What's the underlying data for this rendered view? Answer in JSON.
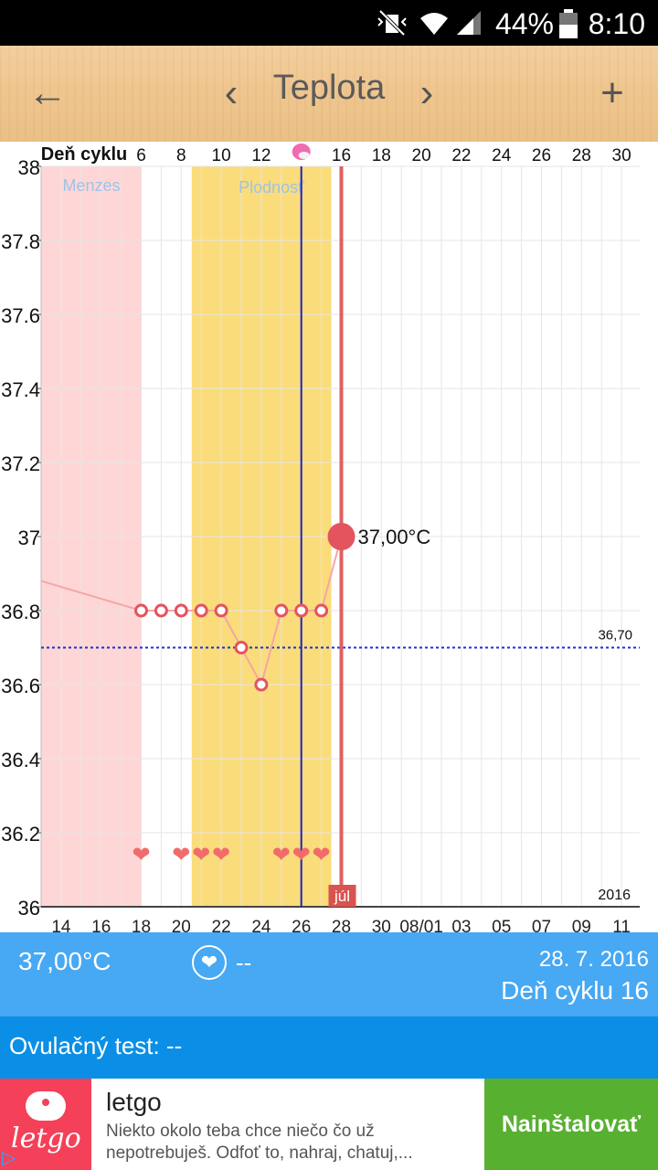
{
  "status_bar": {
    "battery": "44%",
    "time": "8:10"
  },
  "toolbar": {
    "back_label": "←",
    "prev_label": "‹",
    "title": "Teplota",
    "next_label": "›",
    "add_label": "+"
  },
  "chart_data": {
    "type": "line",
    "top_axis_title": "Deň cyklu",
    "top_ticks": [
      "6",
      "8",
      "10",
      "12",
      "",
      "16",
      "18",
      "20",
      "22",
      "24",
      "26",
      "28",
      "30"
    ],
    "bottom_ticks": [
      "14",
      "16",
      "18",
      "20",
      "22",
      "24",
      "26",
      "28",
      "30",
      "08/01",
      "03",
      "05",
      "07",
      "09",
      "11"
    ],
    "y_ticks": [
      "38",
      "37.8",
      "37.6",
      "37.4",
      "37.2",
      "37",
      "36.8",
      "36.6",
      "36.4",
      "36.2",
      "36"
    ],
    "ylim": [
      36,
      38
    ],
    "year_label": "2016",
    "month_label": "júl",
    "phases": [
      {
        "label": "Menzes",
        "color": "#ffd6d6"
      },
      {
        "label": "Plodnosť",
        "color": "#fadc7b"
      }
    ],
    "coverline": {
      "value": 36.7,
      "label": "36,70",
      "color": "#1f2fc9"
    },
    "series": [
      {
        "points": [
          {
            "x": 18,
            "y": 36.8
          },
          {
            "x": 19,
            "y": 36.8
          },
          {
            "x": 20,
            "y": 36.8
          },
          {
            "x": 21,
            "y": 36.8
          },
          {
            "x": 22,
            "y": 36.8
          },
          {
            "x": 23,
            "y": 36.7
          },
          {
            "x": 24,
            "y": 36.6
          },
          {
            "x": 25,
            "y": 36.8
          },
          {
            "x": 26,
            "y": 36.8
          },
          {
            "x": 27,
            "y": 36.8
          },
          {
            "x": 28,
            "y": 37.0
          }
        ]
      }
    ],
    "current_label": "37,00°C",
    "intercourse_days": [
      18,
      20,
      21,
      22,
      25,
      26,
      27
    ],
    "colors": {
      "line": "#f4a6a6",
      "marker": "#e3545f",
      "heart": "#f26b6b",
      "today": "#e06060"
    }
  },
  "info": {
    "temperature": "37,00°C",
    "heart_value": "--",
    "date": "28. 7. 2016",
    "cycle_day": "Deň cyklu 16"
  },
  "ovulation": {
    "label": "Ovulačný test: --"
  },
  "ad": {
    "logo_text": "letgo",
    "app_name": "letgo",
    "description": "Niekto okolo teba chce niečo čo už nepotrebuješ. Odfoť to, nahraj, chatuj,...",
    "install_label": "Nainštalovať"
  }
}
